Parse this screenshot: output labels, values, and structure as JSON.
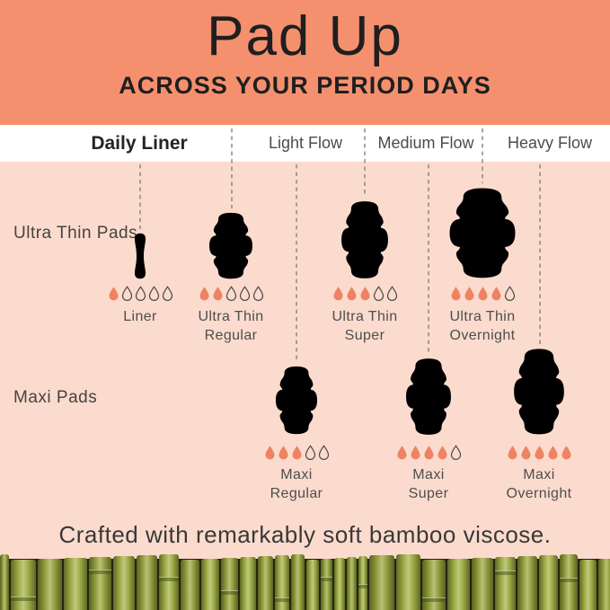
{
  "header": {
    "title": "Pad Up",
    "subtitle": "ACROSS YOUR PERIOD DAYS"
  },
  "columns": [
    {
      "label": "Daily Liner",
      "emphasized": true
    },
    {
      "label": "Light Flow",
      "emphasized": false
    },
    {
      "label": "Medium Flow",
      "emphasized": false
    },
    {
      "label": "Heavy Flow",
      "emphasized": false
    }
  ],
  "row_labels": [
    {
      "label": "Ultra Thin Pads"
    },
    {
      "label": "Maxi Pads"
    }
  ],
  "products": [
    {
      "name": "Liner",
      "line1": "Liner",
      "line2": "",
      "row": "Ultra Thin Pads",
      "drops_filled": 1,
      "drops_total": 5
    },
    {
      "name": "Ultra Thin Regular",
      "line1": "Ultra Thin",
      "line2": "Regular",
      "row": "Ultra Thin Pads",
      "drops_filled": 2,
      "drops_total": 5
    },
    {
      "name": "Ultra Thin Super",
      "line1": "Ultra Thin",
      "line2": "Super",
      "row": "Ultra Thin Pads",
      "drops_filled": 3,
      "drops_total": 5
    },
    {
      "name": "Ultra Thin Overnight",
      "line1": "Ultra Thin",
      "line2": "Overnight",
      "row": "Ultra Thin Pads",
      "drops_filled": 4,
      "drops_total": 5
    },
    {
      "name": "Maxi Regular",
      "line1": "Maxi",
      "line2": "Regular",
      "row": "Maxi Pads",
      "drops_filled": 3,
      "drops_total": 5
    },
    {
      "name": "Maxi Super",
      "line1": "Maxi",
      "line2": "Super",
      "row": "Maxi Pads",
      "drops_filled": 4,
      "drops_total": 5
    },
    {
      "name": "Maxi Overnight",
      "line1": "Maxi",
      "line2": "Overnight",
      "row": "Maxi Pads",
      "drops_filled": 5,
      "drops_total": 5
    }
  ],
  "footer": {
    "tagline": "Crafted with remarkably soft bamboo viscose."
  },
  "colors": {
    "header_bg": "#F5906E",
    "body_bg": "#FBDBCD",
    "band_bg": "#FFFFFF",
    "drop_fill": "#EE8363",
    "pad_outline": "#45403B",
    "dashed_line": "#807970"
  }
}
